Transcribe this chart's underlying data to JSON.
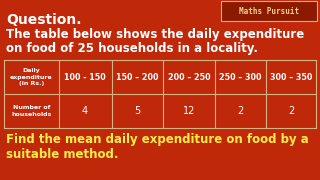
{
  "bg_color": "#c0280a",
  "title_text": "Question.",
  "brand_text": "Maths Pursuit",
  "body_line1": "The table below shows the daily expenditure",
  "body_line2": "on food of 25 households in a locality.",
  "footer_line1": "Find the mean daily expenditure on food by a",
  "footer_line2": "suitable method.",
  "col_headers": [
    "Daily\nexpenditure\n(in Rs.)",
    "100 - 150",
    "150 – 200",
    "200 – 250",
    "250 – 300",
    "300 – 350"
  ],
  "row_label": "Number of\nhouseholds",
  "row_values": [
    "4",
    "5",
    "12",
    "2",
    "2"
  ],
  "table_border": "#d4b483",
  "title_color": "#ffffff",
  "brand_color": "#f5d08a",
  "body_color": "#ffffff",
  "footer_color": "#ffee44",
  "brand_box_color": "#8b1a00",
  "brand_box_border": "#d4b483"
}
